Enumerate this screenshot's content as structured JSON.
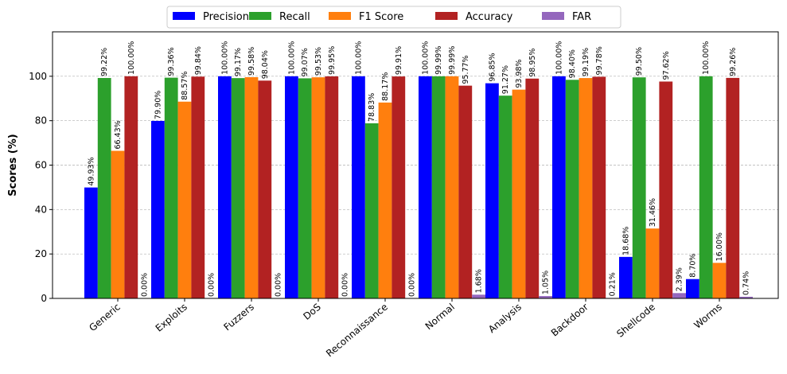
{
  "chart_data": {
    "type": "bar",
    "title": "",
    "xlabel": "",
    "ylabel": "Scores (%)",
    "ylim": [
      0,
      120
    ],
    "yticks": [
      0,
      20,
      40,
      60,
      80,
      100
    ],
    "grid": "y-dashed",
    "legend_position": "top-center",
    "categories": [
      "Generic",
      "Exploits",
      "Fuzzers",
      "DoS",
      "Reconnaissance",
      "Normal",
      "Analysis",
      "Backdoor",
      "Shellcode",
      "Worms"
    ],
    "series": [
      {
        "name": "Precision",
        "color": "#0000ff",
        "values": [
          49.93,
          79.9,
          100.0,
          100.0,
          100.0,
          100.0,
          96.85,
          100.0,
          18.68,
          8.7
        ]
      },
      {
        "name": "Recall",
        "color": "#2ca02c",
        "values": [
          99.22,
          99.36,
          99.17,
          99.07,
          78.83,
          99.99,
          91.27,
          98.4,
          99.5,
          100.0
        ]
      },
      {
        "name": "F1 Score",
        "color": "#ff7f0e",
        "values": [
          66.43,
          88.57,
          99.58,
          99.53,
          88.17,
          99.99,
          93.98,
          99.19,
          31.46,
          16.0
        ]
      },
      {
        "name": "Accuracy",
        "color": "#b22222",
        "values": [
          100.0,
          99.84,
          98.04,
          99.95,
          99.91,
          95.77,
          98.95,
          99.78,
          97.62,
          99.26
        ]
      },
      {
        "name": "FAR",
        "color": "#9467bd",
        "values": [
          0.0,
          0.0,
          0.0,
          0.0,
          0.0,
          1.68,
          1.05,
          0.21,
          2.39,
          0.74
        ]
      }
    ]
  }
}
